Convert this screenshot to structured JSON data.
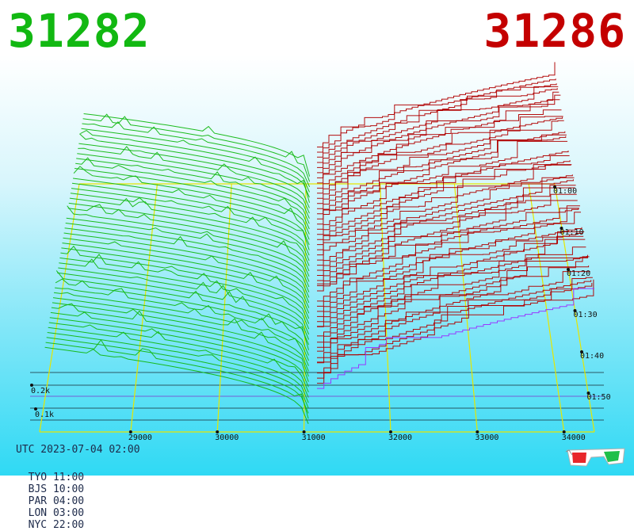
{
  "header": {
    "bid_price": "31282",
    "ask_price": "31286",
    "bid_color": "#12b812",
    "ask_color": "#c40000"
  },
  "footer": {
    "utc_label": "UTC 2023-07-04 02:00",
    "zones": [
      {
        "label": "TYO 11:00"
      },
      {
        "label": "BJS 10:00"
      },
      {
        "label": "PAR 04:00"
      },
      {
        "label": "LON 03:00"
      },
      {
        "label": "NYC 22:00"
      }
    ]
  },
  "icons": [
    "3d-glasses-icon"
  ],
  "chart_data": {
    "type": "area",
    "x_ticks": [
      "29000",
      "30000",
      "31000",
      "32000",
      "33000",
      "34000"
    ],
    "time_ticks": [
      "01:00",
      "01:10",
      "01:20",
      "01:30",
      "01:40",
      "01:50"
    ],
    "volume_ticks": [
      "0.2k",
      "0.1k"
    ],
    "x_range": [
      27950,
      34350
    ],
    "mid_price": 31000,
    "series": [
      {
        "side": "bid",
        "color": "#12b812"
      },
      {
        "side": "ask",
        "color": "#b00000"
      }
    ],
    "grid_color": "#e6e600",
    "last_ask_line_color": "#9b30ff"
  }
}
